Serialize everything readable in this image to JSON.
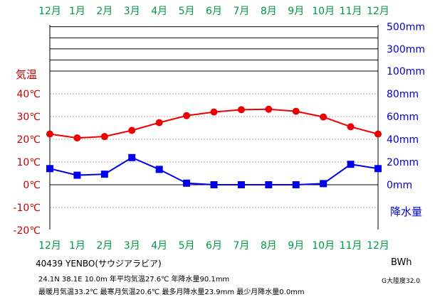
{
  "chart_data": {
    "type": "line",
    "categories": [
      "12月",
      "1月",
      "2月",
      "3月",
      "4月",
      "5月",
      "6月",
      "7月",
      "8月",
      "9月",
      "10月",
      "11月",
      "12月"
    ],
    "series": [
      {
        "name": "気温",
        "unit": "℃",
        "axis": "left",
        "color": "#ee0000",
        "marker": "circle",
        "values": [
          22.3,
          20.6,
          21.2,
          23.9,
          27.3,
          30.4,
          32.0,
          33.0,
          33.2,
          32.3,
          29.8,
          25.5,
          22.3
        ]
      },
      {
        "name": "降水量",
        "unit": "mm",
        "axis": "right",
        "color": "#0000ee",
        "marker": "square",
        "values": [
          14.2,
          8.4,
          9.3,
          23.9,
          13.5,
          1.4,
          0.0,
          0.0,
          0.0,
          0.0,
          1.0,
          18.0,
          14.2
        ]
      }
    ],
    "y_left": {
      "label": "気温",
      "ticks": [
        "40℃",
        "30℃",
        "20℃",
        "10℃",
        "0℃",
        "-10℃",
        "-20℃"
      ],
      "tick_values": [
        40,
        30,
        20,
        10,
        0,
        -10,
        -20
      ],
      "range": [
        -20,
        60
      ]
    },
    "y_right": {
      "label": "降水量",
      "ticks": [
        "500mm",
        "300mm",
        "100mm",
        "80mm",
        "60mm",
        "40mm",
        "20mm",
        "0mm"
      ],
      "range": [
        0,
        500
      ],
      "note": "linear 0-100mm, then compressed bands 100-200-300-400-500mm"
    },
    "top_bands_mm": [
      500,
      400,
      300,
      200,
      100
    ],
    "grid": true,
    "colors": {
      "month_labels": "#009944",
      "temp_axis": "#cc0000",
      "precip_axis": "#0000cc",
      "grid_dashed": "#999999"
    }
  },
  "station": {
    "header": "40439  YENBO(サウジアラビア)",
    "line1": "24.1N  38.1E  10.0m  年平均気温27.6℃  年降水量90.1mm",
    "line2": "最暖月気温33.2℃  最寒月気温20.6℃  最多月降水量23.9mm  最少月降水量0.0mm",
    "climate_code": "BWh",
    "continentality": "G大陸度32.0"
  }
}
